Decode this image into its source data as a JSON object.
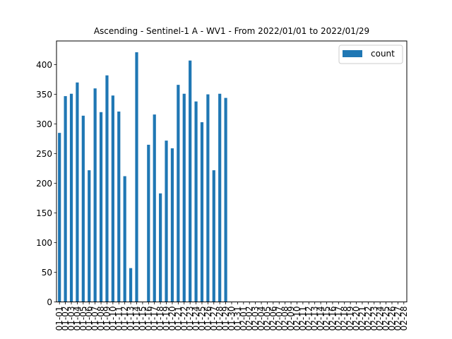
{
  "chart_data": {
    "type": "bar",
    "title": "Ascending - Sentinel-1 A - WV1 - From 2022/01/01 to 2022/01/29",
    "xlabel": "",
    "ylabel": "",
    "ylim": [
      0,
      440
    ],
    "yticks": [
      0,
      50,
      100,
      150,
      200,
      250,
      300,
      350,
      400
    ],
    "grid": false,
    "legend_position": "top-right",
    "bar_color": "#1f77b4",
    "categories": [
      "01-01",
      "01-02",
      "01-03",
      "01-04",
      "01-05",
      "01-06",
      "01-07",
      "01-08",
      "01-09",
      "01-10",
      "01-11",
      "01-12",
      "01-13",
      "01-14",
      "01-15",
      "01-16",
      "01-17",
      "01-18",
      "01-19",
      "01-20",
      "01-21",
      "01-22",
      "01-23",
      "01-24",
      "01-25",
      "01-26",
      "01-27",
      "01-28",
      "01-29",
      "01-30",
      "01-31",
      "02-01",
      "02-02",
      "02-03",
      "02-04",
      "02-05",
      "02-06",
      "02-07",
      "02-08",
      "02-09",
      "02-10",
      "02-11",
      "02-12",
      "02-13",
      "02-14",
      "02-15",
      "02-16",
      "02-17",
      "02-18",
      "02-19",
      "02-20",
      "02-21",
      "02-22",
      "02-23",
      "02-24",
      "02-25",
      "02-26",
      "02-27",
      "02-28"
    ],
    "series": [
      {
        "name": "count",
        "values": [
          285,
          347,
          351,
          370,
          314,
          222,
          360,
          320,
          382,
          348,
          321,
          212,
          57,
          421,
          0,
          265,
          316,
          183,
          272,
          259,
          366,
          351,
          407,
          338,
          303,
          350,
          222,
          351,
          344,
          0,
          0,
          0,
          0,
          0,
          0,
          0,
          0,
          0,
          0,
          0,
          0,
          0,
          0,
          0,
          0,
          0,
          0,
          0,
          0,
          0,
          0,
          0,
          0,
          0,
          0,
          0,
          0,
          0,
          0
        ]
      }
    ]
  }
}
